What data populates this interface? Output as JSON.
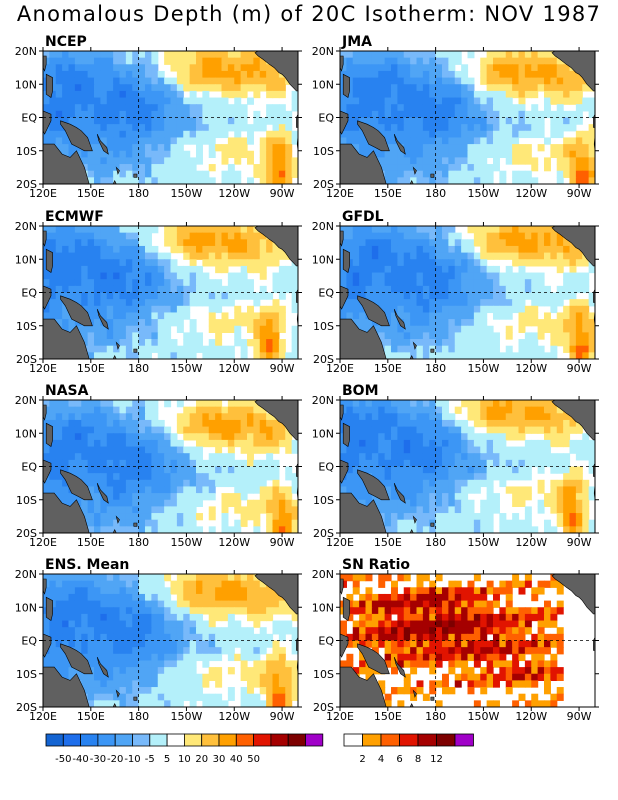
{
  "title": "Anomalous Depth (m) of 20C Isotherm: NOV 1987",
  "chart_data": {
    "type": "heatmap",
    "xlabels": [
      "120E",
      "150E",
      "180",
      "150W",
      "120W",
      "90W"
    ],
    "ylabels": [
      "20N",
      "10N",
      "EQ",
      "10S",
      "20S"
    ],
    "xlim_lon_east": [
      120,
      280
    ],
    "ylim_lat": [
      -20,
      20
    ],
    "dashed_gridlines": {
      "lon": "180",
      "lat": "EQ"
    },
    "panels": [
      {
        "name": "NCEP",
        "colorbar": "anomaly"
      },
      {
        "name": "JMA",
        "colorbar": "anomaly"
      },
      {
        "name": "ECMWF",
        "colorbar": "anomaly"
      },
      {
        "name": "GFDL",
        "colorbar": "anomaly"
      },
      {
        "name": "NASA",
        "colorbar": "anomaly"
      },
      {
        "name": "BOM",
        "colorbar": "anomaly"
      },
      {
        "name": "ENS. Mean",
        "colorbar": "anomaly"
      },
      {
        "name": "SN Ratio",
        "colorbar": "snr"
      }
    ],
    "colorbar_anomaly": {
      "levels": [
        "-50",
        "-40",
        "-30",
        "-20",
        "-10",
        "-5",
        "5",
        "10",
        "20",
        "30",
        "40",
        "50"
      ],
      "colors": [
        "#1464d2",
        "#1e6eeb",
        "#2882f0",
        "#3c96f5",
        "#50a5f5",
        "#78b9fa",
        "#b4f0fa",
        "#ffffff",
        "#ffe878",
        "#ffc03c",
        "#ffa000",
        "#ff6000",
        "#e11400",
        "#a50000",
        "#7d0000",
        "#a000c8"
      ]
    },
    "colorbar_snr": {
      "levels": [
        "2",
        "4",
        "6",
        "8",
        "12"
      ],
      "colors": [
        "#ffffff",
        "#ffa000",
        "#ff6000",
        "#e11400",
        "#a50000",
        "#7d0000",
        "#a000c8"
      ]
    }
  },
  "colors": {
    "land": "#606060",
    "zero": "#ffffff"
  }
}
